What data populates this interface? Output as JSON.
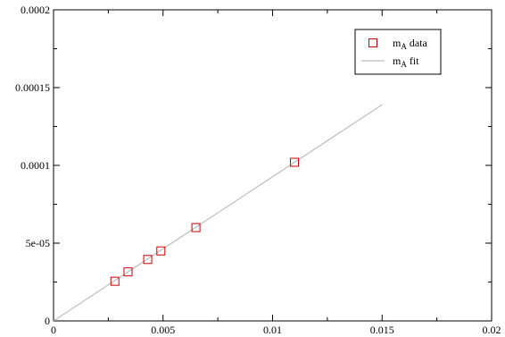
{
  "chart_data": {
    "type": "scatter",
    "title": "",
    "xlabel": "",
    "ylabel": "",
    "xlim": [
      0,
      0.02
    ],
    "ylim": [
      0,
      0.0002
    ],
    "x_ticks": [
      {
        "value": 0,
        "label": "0"
      },
      {
        "value": 0.005,
        "label": "0.005"
      },
      {
        "value": 0.01,
        "label": "0.01"
      },
      {
        "value": 0.015,
        "label": "0.015"
      },
      {
        "value": 0.02,
        "label": "0.02"
      }
    ],
    "y_ticks": [
      {
        "value": 0,
        "label": "0"
      },
      {
        "value": 5e-05,
        "label": "5e-05"
      },
      {
        "value": 0.0001,
        "label": "0.0001"
      },
      {
        "value": 0.00015,
        "label": "0.00015"
      },
      {
        "value": 0.0002,
        "label": "0.0002"
      }
    ],
    "grid": false,
    "legend_position": "top-right",
    "series": [
      {
        "name_main": "m",
        "name_sub": "A",
        "name_suffix": " data",
        "kind": "markers",
        "marker": "square",
        "color": "#cc0000",
        "points": [
          {
            "x": 0.0028,
            "y": 2.55e-05
          },
          {
            "x": 0.0034,
            "y": 3.15e-05
          },
          {
            "x": 0.0043,
            "y": 3.95e-05
          },
          {
            "x": 0.0049,
            "y": 4.5e-05
          },
          {
            "x": 0.0065,
            "y": 6e-05
          },
          {
            "x": 0.011,
            "y": 0.000102
          }
        ]
      },
      {
        "name_main": "m",
        "name_sub": "A",
        "name_suffix": " fit",
        "kind": "line",
        "color": "#b0b0b0",
        "points": [
          {
            "x": 0,
            "y": 0
          },
          {
            "x": 0.015,
            "y": 0.000139
          }
        ]
      }
    ]
  }
}
